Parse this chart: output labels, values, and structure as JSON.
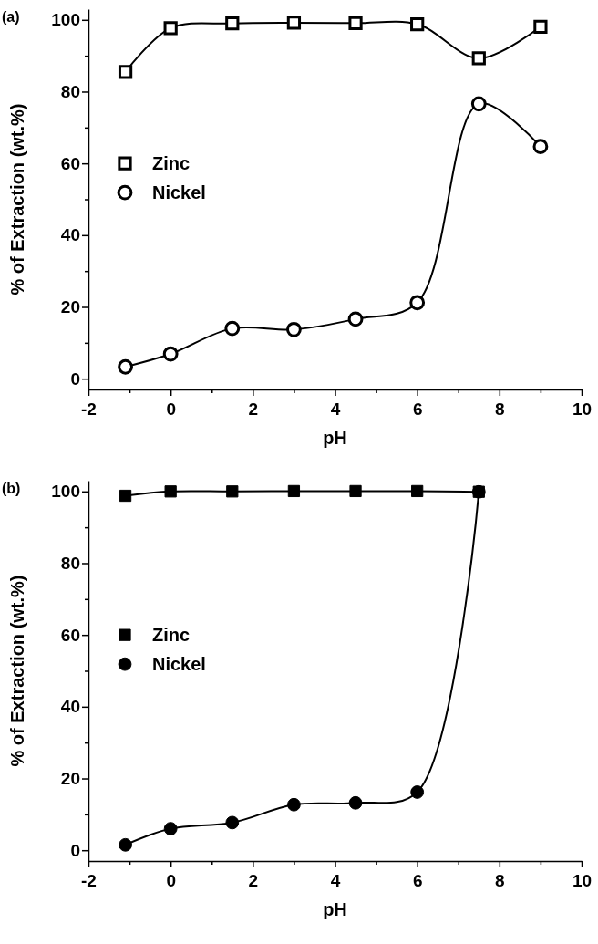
{
  "chart_data": [
    {
      "type": "line",
      "title": "(a)",
      "xlabel": "pH",
      "ylabel": "% of Extraction (wt.%)",
      "xlim": [
        -2,
        10
      ],
      "ylim": [
        -3,
        103
      ],
      "xticks": [
        -2,
        {
          "value": -1,
          "label": null
        },
        0,
        {
          "value": 1,
          "label": null
        },
        2,
        {
          "value": 3,
          "label": null
        },
        4,
        {
          "value": 5,
          "label": null
        },
        6,
        {
          "value": 7,
          "label": null
        },
        8,
        {
          "value": 9,
          "label": null
        },
        10
      ],
      "yticks": [
        0,
        {
          "value": 10,
          "label": null
        },
        20,
        {
          "value": 30,
          "label": null
        },
        40,
        {
          "value": 50,
          "label": null
        },
        60,
        {
          "value": 70,
          "label": null
        },
        80,
        {
          "value": 90,
          "label": null
        },
        100
      ],
      "x": [
        -1.1,
        0,
        1.5,
        3,
        4.5,
        6,
        7.5,
        9
      ],
      "legend": "left",
      "grid": false,
      "line_style": "solid",
      "series": [
        {
          "name": "Zinc",
          "color": "#000000",
          "marker": "square",
          "values": [
            85.5,
            97.7,
            99,
            99.2,
            99.1,
            98.8,
            89.3,
            98.1
          ]
        },
        {
          "name": "Nickel",
          "color": "#000000",
          "marker": "circle",
          "values": [
            3.3,
            6.9,
            14,
            13.7,
            16.6,
            21.2,
            76.6,
            64.7
          ]
        }
      ]
    },
    {
      "type": "line",
      "title": "(b)",
      "xlabel": "pH",
      "ylabel": "% of Extraction (wt.%)",
      "xlim": [
        -2,
        10
      ],
      "ylim": [
        -3,
        103
      ],
      "xticks": [
        -2,
        {
          "value": -1,
          "label": null
        },
        0,
        {
          "value": 1,
          "label": null
        },
        2,
        {
          "value": 3,
          "label": null
        },
        4,
        {
          "value": 5,
          "label": null
        },
        6,
        {
          "value": 7,
          "label": null
        },
        8,
        {
          "value": 9,
          "label": null
        },
        10
      ],
      "yticks": [
        0,
        {
          "value": 10,
          "label": null
        },
        20,
        {
          "value": 30,
          "label": null
        },
        40,
        {
          "value": 50,
          "label": null
        },
        60,
        {
          "value": 70,
          "label": null
        },
        80,
        {
          "value": 90,
          "label": null
        },
        100
      ],
      "x": [
        -1.1,
        0,
        1.5,
        3,
        4.5,
        6,
        7.5
      ],
      "legend": "left",
      "grid": false,
      "line_style": "solid",
      "series": [
        {
          "name": "Zinc",
          "color": "#000000",
          "marker": "square",
          "values": [
            98.8,
            100,
            100,
            100.1,
            100.1,
            100.1,
            99.9
          ]
        },
        {
          "name": "Nickel",
          "color": "#000000",
          "marker": "circle",
          "values": [
            1.5,
            6,
            7.7,
            12.7,
            13.2,
            16.2,
            99.9
          ]
        }
      ]
    }
  ]
}
